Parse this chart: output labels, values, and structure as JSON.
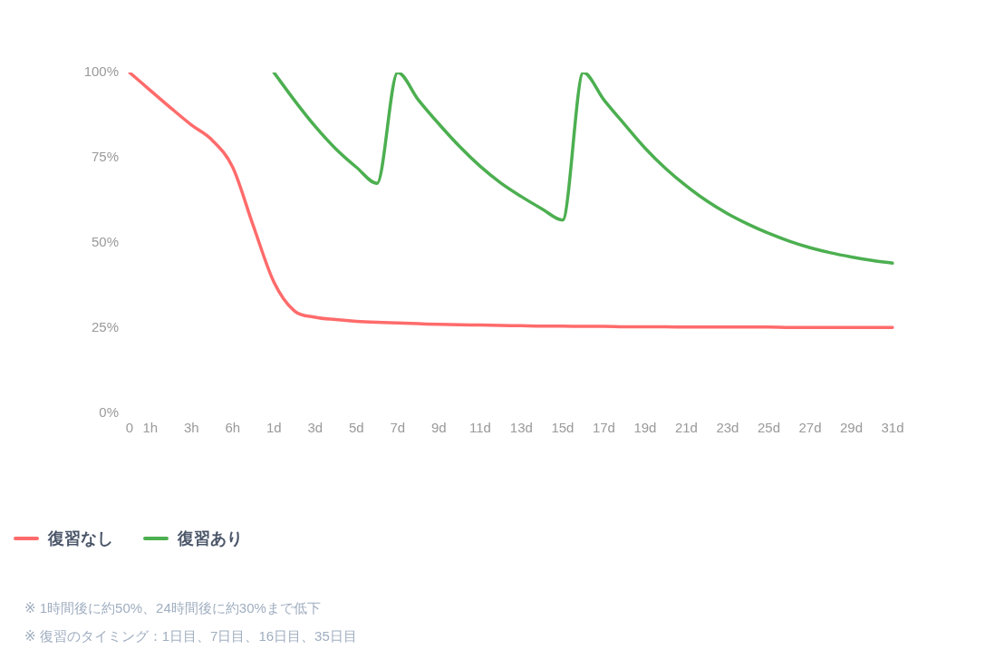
{
  "chart_data": {
    "type": "line",
    "categories": [
      "0",
      "1h",
      null,
      "3h",
      null,
      "6h",
      null,
      "1d",
      null,
      "3d",
      null,
      "5d",
      null,
      "7d",
      null,
      "9d",
      null,
      "11d",
      null,
      "13d",
      null,
      "15d",
      null,
      "17d",
      null,
      "19d",
      null,
      "21d",
      null,
      "23d",
      null,
      "25d",
      null,
      "27d",
      null,
      "29d",
      null,
      "31d"
    ],
    "series": [
      {
        "name": "復習なし",
        "color": "#ff6b6b",
        "values": [
          100,
          94.8,
          89.6,
          84.6,
          80.2,
          72.2,
          55,
          38.5,
          30,
          28.2,
          27.5,
          27,
          26.7,
          26.5,
          26.3,
          26.1,
          26,
          25.9,
          25.8,
          25.7,
          25.6,
          25.6,
          25.5,
          25.5,
          25.4,
          25.4,
          25.4,
          25.3,
          25.3,
          25.3,
          25.3,
          25.3,
          25.2,
          25.2,
          25.2,
          25.2,
          25.2,
          25.2
        ]
      },
      {
        "name": "復習あり",
        "color": "#4caf50",
        "values": [
          null,
          null,
          null,
          null,
          null,
          null,
          null,
          100,
          91.8,
          84.2,
          77.6,
          72.2,
          67.5,
          100,
          92,
          84.9,
          78.3,
          72.5,
          67.6,
          63.6,
          60,
          56.7,
          100,
          92,
          84.8,
          77.8,
          71.8,
          66.7,
          62.3,
          58.6,
          55.5,
          52.8,
          50.5,
          48.6,
          47.1,
          45.9,
          44.9,
          44.1
        ]
      }
    ],
    "ylim": [
      0,
      100
    ],
    "yticks": [
      {
        "value": 0,
        "label": "0%"
      },
      {
        "value": 25,
        "label": "25%"
      },
      {
        "value": 50,
        "label": "50%"
      },
      {
        "value": 75,
        "label": "75%"
      },
      {
        "value": 100,
        "label": "100%"
      }
    ],
    "legend": "bottom left",
    "marker": "none",
    "annotations": [
      "※ 1時間後に約50%、24時間後に約30%まで低下",
      "※ 復習のタイミング：1日目、7日目、16日目、35日目"
    ]
  }
}
